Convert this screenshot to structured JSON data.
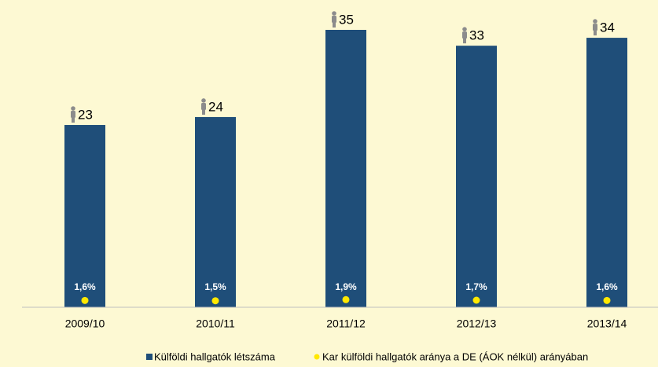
{
  "chart_data": {
    "type": "bar",
    "categories": [
      "2009/10",
      "2010/11",
      "2011/12",
      "2012/13",
      "2013/14"
    ],
    "series": [
      {
        "name": "Külföldi hallgatók létszáma",
        "color": "#1f4e79",
        "values": [
          23,
          24,
          35,
          33,
          34
        ]
      },
      {
        "name": "Kar külföldi hallgatók aránya a DE (ÁOK nélkül) arányában",
        "color": "#ffe800",
        "axis": "y2",
        "values": [
          1.6,
          1.5,
          1.9,
          1.7,
          1.6
        ],
        "value_labels": [
          "1,6%",
          "1,5%",
          "1,9%",
          "1,7%",
          "1,6%"
        ]
      }
    ],
    "ylim": [
      0,
      35
    ],
    "y2lim": [
      0,
      100
    ]
  }
}
